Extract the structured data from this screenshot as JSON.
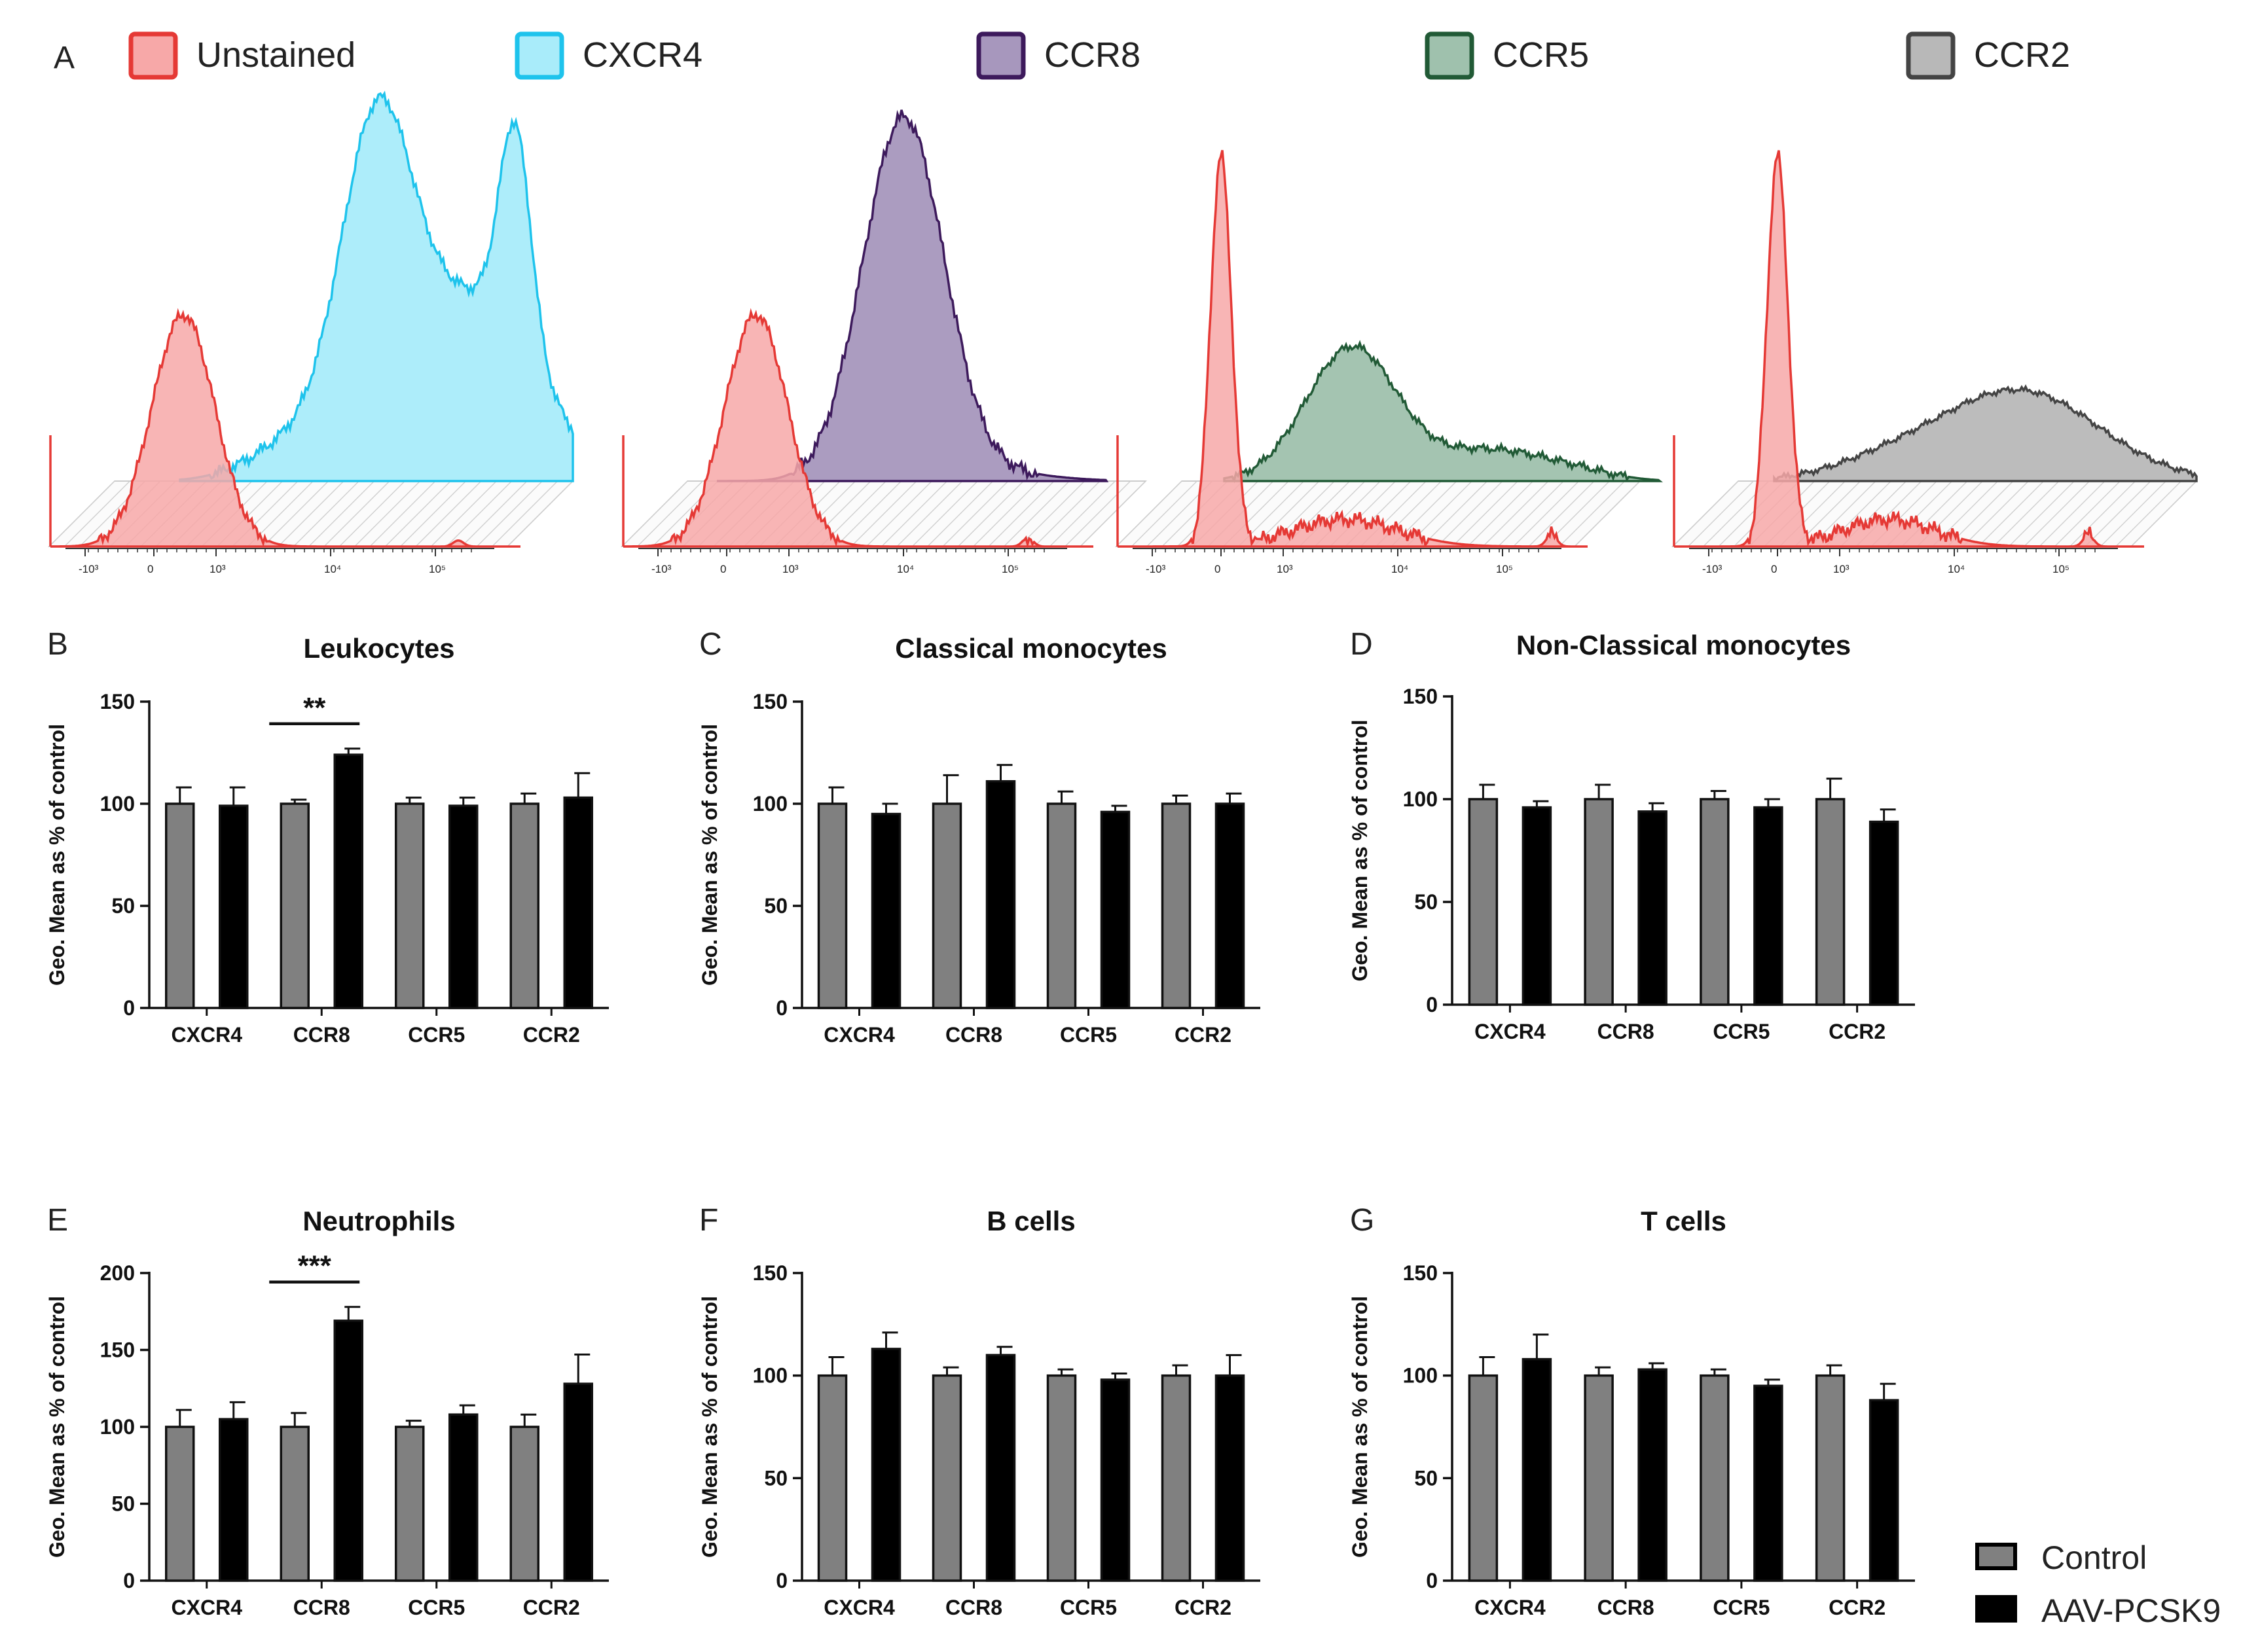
{
  "panel_a": {
    "letter": "A",
    "legend": [
      {
        "label": "Unstained",
        "fill": "#f7a8a8",
        "stroke": "#e53935"
      },
      {
        "label": "CXCR4",
        "fill": "#a9ecfa",
        "stroke": "#1ec3ec"
      },
      {
        "label": "CCR8",
        "fill": "#a797bd",
        "stroke": "#3d1a5c"
      },
      {
        "label": "CCR5",
        "fill": "#9fc1ad",
        "stroke": "#215a36"
      },
      {
        "label": "CCR2",
        "fill": "#b8b8b8",
        "stroke": "#444444"
      }
    ],
    "axis_ticks": [
      "-10³",
      "0",
      "10³",
      "10⁴",
      "10⁵"
    ],
    "histograms": [
      "CXCR4",
      "CCR8",
      "CCR5",
      "CCR2"
    ]
  },
  "bar_legend": {
    "control": "Control",
    "treated": "AAV-PCSK9",
    "control_color": "#808080",
    "treated_color": "#000000"
  },
  "chart_data": [
    {
      "letter": "B",
      "type": "bar",
      "title": "Leukocytes",
      "ylabel": "Geo. Mean as % of control",
      "ylim": [
        0,
        150
      ],
      "yticks": [
        0,
        50,
        100,
        150
      ],
      "categories": [
        "CXCR4",
        "CCR8",
        "CCR5",
        "CCR2"
      ],
      "series": [
        {
          "name": "Control",
          "values": [
            100,
            100,
            100,
            100
          ],
          "errors": [
            8,
            2,
            3,
            5
          ]
        },
        {
          "name": "AAV-PCSK9",
          "values": [
            99,
            124,
            99,
            103
          ],
          "errors": [
            9,
            3,
            4,
            12
          ]
        }
      ],
      "significance": [
        {
          "category": "CCR8",
          "label": "**"
        }
      ]
    },
    {
      "letter": "C",
      "type": "bar",
      "title": "Classical monocytes",
      "ylabel": "Geo. Mean as % of control",
      "ylim": [
        0,
        150
      ],
      "yticks": [
        0,
        50,
        100,
        150
      ],
      "categories": [
        "CXCR4",
        "CCR8",
        "CCR5",
        "CCR2"
      ],
      "series": [
        {
          "name": "Control",
          "values": [
            100,
            100,
            100,
            100
          ],
          "errors": [
            8,
            14,
            6,
            4
          ]
        },
        {
          "name": "AAV-PCSK9",
          "values": [
            95,
            111,
            96,
            100
          ],
          "errors": [
            5,
            8,
            3,
            5
          ]
        }
      ],
      "significance": []
    },
    {
      "letter": "D",
      "type": "bar",
      "title": "Non-Classical monocytes",
      "ylabel": "Geo. Mean as % of control",
      "ylim": [
        0,
        150
      ],
      "yticks": [
        0,
        50,
        100,
        150
      ],
      "categories": [
        "CXCR4",
        "CCR8",
        "CCR5",
        "CCR2"
      ],
      "series": [
        {
          "name": "Control",
          "values": [
            100,
            100,
            100,
            100
          ],
          "errors": [
            7,
            7,
            4,
            10
          ]
        },
        {
          "name": "AAV-PCSK9",
          "values": [
            96,
            94,
            96,
            89
          ],
          "errors": [
            3,
            4,
            4,
            6
          ]
        }
      ],
      "significance": []
    },
    {
      "letter": "E",
      "type": "bar",
      "title": "Neutrophils",
      "ylabel": "Geo. Mean as % of control",
      "ylim": [
        0,
        200
      ],
      "yticks": [
        0,
        50,
        100,
        150,
        200
      ],
      "categories": [
        "CXCR4",
        "CCR8",
        "CCR5",
        "CCR2"
      ],
      "series": [
        {
          "name": "Control",
          "values": [
            100,
            100,
            100,
            100
          ],
          "errors": [
            11,
            9,
            4,
            8
          ]
        },
        {
          "name": "AAV-PCSK9",
          "values": [
            105,
            169,
            108,
            128
          ],
          "errors": [
            11,
            9,
            6,
            19
          ]
        }
      ],
      "significance": [
        {
          "category": "CCR8",
          "label": "***"
        }
      ]
    },
    {
      "letter": "F",
      "type": "bar",
      "title": "B cells",
      "ylabel": "Geo. Mean as % of control",
      "ylim": [
        0,
        150
      ],
      "yticks": [
        0,
        50,
        100,
        150
      ],
      "categories": [
        "CXCR4",
        "CCR8",
        "CCR5",
        "CCR2"
      ],
      "series": [
        {
          "name": "Control",
          "values": [
            100,
            100,
            100,
            100
          ],
          "errors": [
            9,
            4,
            3,
            5
          ]
        },
        {
          "name": "AAV-PCSK9",
          "values": [
            113,
            110,
            98,
            100
          ],
          "errors": [
            8,
            4,
            3,
            10
          ]
        }
      ],
      "significance": []
    },
    {
      "letter": "G",
      "type": "bar",
      "title": "T cells",
      "ylabel": "Geo. Mean as % of control",
      "ylim": [
        0,
        150
      ],
      "yticks": [
        0,
        50,
        100,
        150
      ],
      "categories": [
        "CXCR4",
        "CCR8",
        "CCR5",
        "CCR2"
      ],
      "series": [
        {
          "name": "Control",
          "values": [
            100,
            100,
            100,
            100
          ],
          "errors": [
            9,
            4,
            3,
            5
          ]
        },
        {
          "name": "AAV-PCSK9",
          "values": [
            108,
            103,
            95,
            88
          ],
          "errors": [
            12,
            3,
            3,
            8
          ]
        }
      ],
      "significance": []
    }
  ]
}
